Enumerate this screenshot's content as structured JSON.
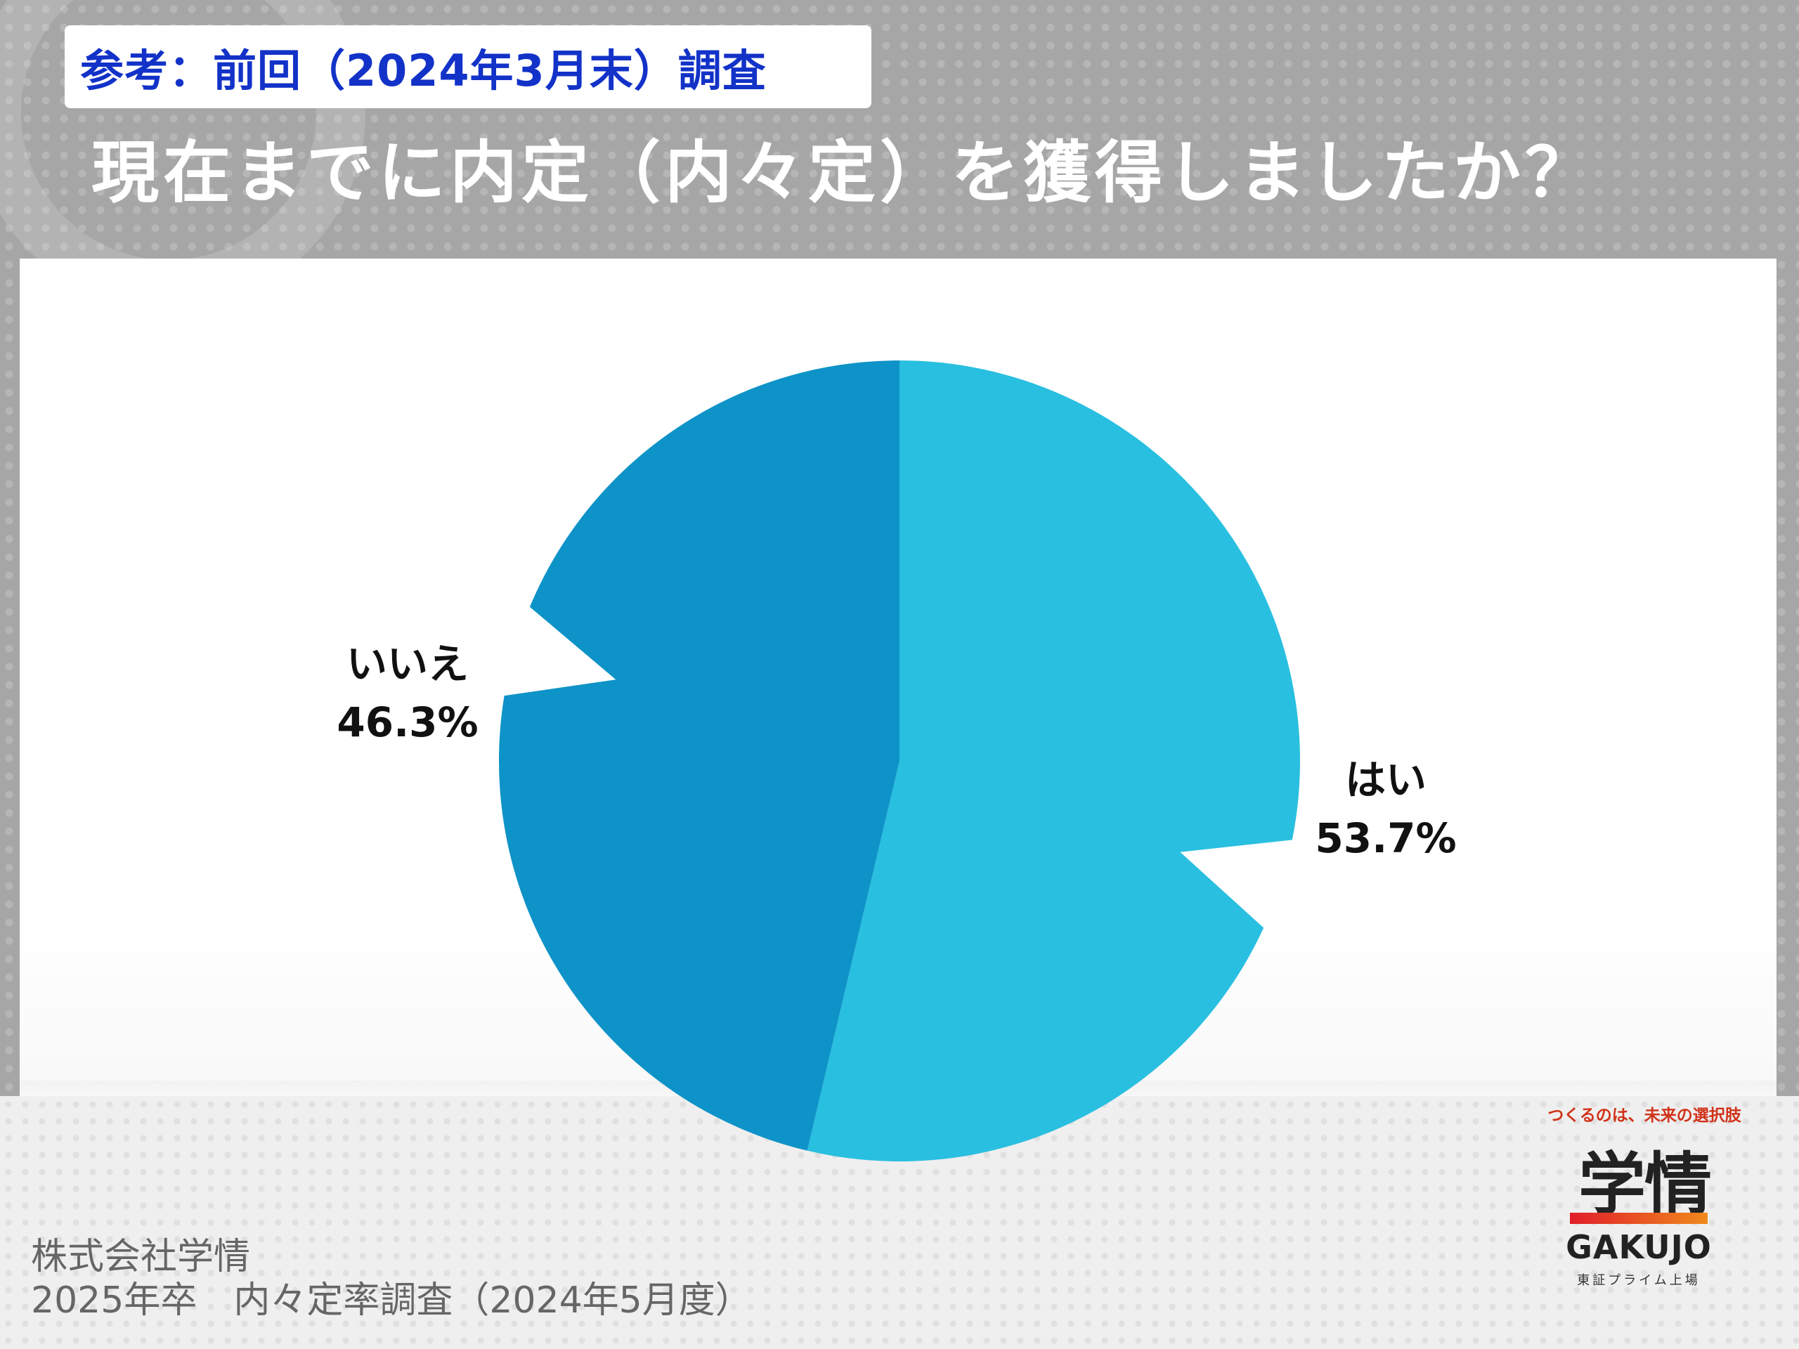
{
  "header": {
    "reference_label": "参考：前回（2024年3月末）調査",
    "title": "現在までに内定（内々定）を獲得しましたか？"
  },
  "chart_data": {
    "type": "pie",
    "start_angle_deg": 0,
    "direction": "clockwise",
    "slices": [
      {
        "label": "はい",
        "value": 53.7,
        "display": "53.7%",
        "color": "#29bfe0"
      },
      {
        "label": "いいえ",
        "value": 46.3,
        "display": "46.3%",
        "color": "#0e93c8"
      }
    ]
  },
  "footer": {
    "line1": "株式会社学情",
    "line2": "2025年卒　内々定率調査（2024年5月度）"
  },
  "logo": {
    "tagline": "つくるのは、未来の選択肢",
    "kanji": "学情",
    "english": "GAKUJO",
    "subtitle": "東証プライム上場"
  }
}
